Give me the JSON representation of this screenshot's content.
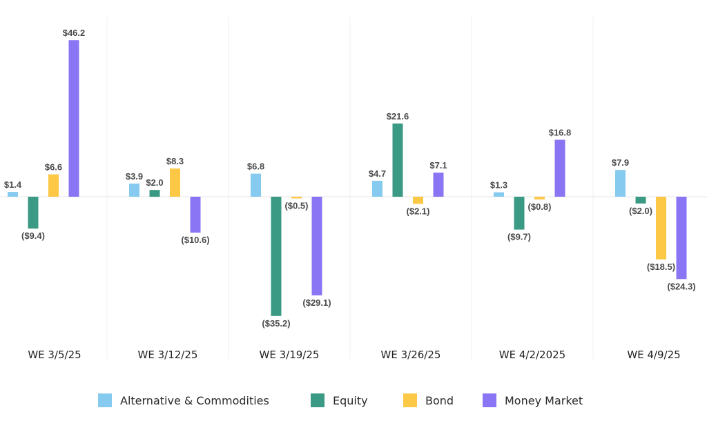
{
  "chart_data": {
    "type": "bar",
    "title": "",
    "xlabel": "",
    "ylabel": "",
    "ylim": [
      -40,
      50
    ],
    "grid": false,
    "legend_position": "bottom",
    "categories": [
      "WE 3/5/25",
      "WE 3/12/25",
      "WE 3/19/25",
      "WE 3/26/25",
      "WE 4/2/2025",
      "WE 4/9/25"
    ],
    "series": [
      {
        "name": "Alternative & Commodities",
        "color": "#86CBEF",
        "values": [
          1.4,
          3.9,
          6.8,
          4.7,
          1.3,
          7.9
        ],
        "labels": [
          "$1.4",
          "$3.9",
          "$6.8",
          "$4.7",
          "$1.3",
          "$7.9"
        ]
      },
      {
        "name": "Equity",
        "color": "#3A9A83",
        "values": [
          -9.4,
          2.0,
          -35.2,
          21.6,
          -9.7,
          -2.0
        ],
        "labels": [
          "($9.4)",
          "$2.0",
          "($35.2)",
          "$21.6",
          "($9.7)",
          "($2.0)"
        ]
      },
      {
        "name": "Bond",
        "color": "#FCC845",
        "values": [
          6.6,
          8.3,
          -0.5,
          -2.1,
          -0.8,
          -18.5
        ],
        "labels": [
          "$6.6",
          "$8.3",
          "($0.5)",
          "($2.1)",
          "($0.8)",
          "($18.5)"
        ]
      },
      {
        "name": "Money Market",
        "color": "#8A75F5",
        "values": [
          46.2,
          -10.6,
          -29.1,
          7.1,
          16.8,
          -24.3
        ],
        "labels": [
          "$46.2",
          "($10.6)",
          "($29.1)",
          "$7.1",
          "$16.8",
          "($24.3)"
        ]
      }
    ]
  }
}
